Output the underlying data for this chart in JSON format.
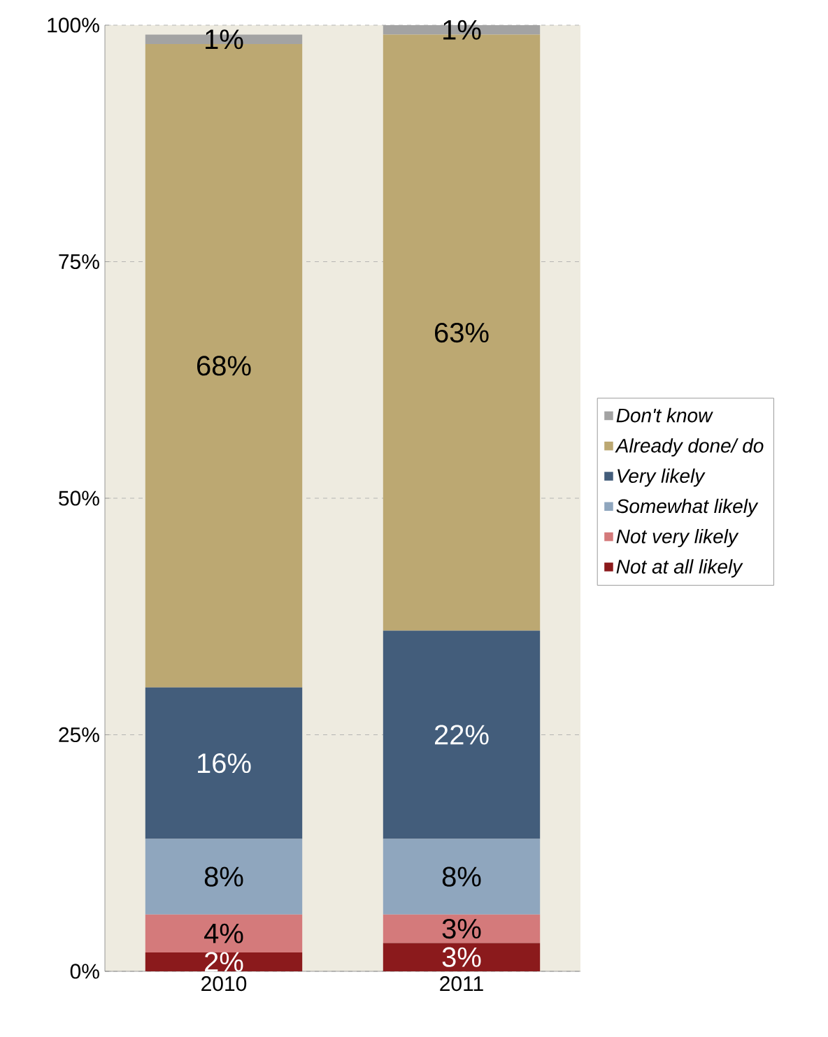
{
  "chart_data": {
    "type": "bar",
    "stacked": true,
    "categories": [
      "2010",
      "2011"
    ],
    "series": [
      {
        "name": "Not at all likely",
        "color": "#8b1a1c",
        "values": [
          2,
          3
        ],
        "value_labels": [
          "2%",
          "3%"
        ]
      },
      {
        "name": "Not very likely",
        "color": "#d47a7b",
        "values": [
          4,
          3
        ],
        "value_labels": [
          "4%",
          "3%"
        ]
      },
      {
        "name": "Somewhat likely",
        "color": "#8fa6be",
        "values": [
          8,
          8
        ],
        "value_labels": [
          "8%",
          "8%"
        ]
      },
      {
        "name": "Very likely",
        "color": "#435d7b",
        "values": [
          16,
          22
        ],
        "value_labels": [
          "16%",
          "22%"
        ]
      },
      {
        "name": "Already done/ do",
        "color": "#bca872",
        "values": [
          68,
          63
        ],
        "value_labels": [
          "68%",
          "63%"
        ]
      },
      {
        "name": "Don't know",
        "color": "#a3a3a3",
        "values": [
          1,
          1
        ],
        "value_labels": [
          "1%",
          "1%"
        ]
      }
    ],
    "ylim": [
      0,
      100
    ],
    "yticks": [
      {
        "value": 0,
        "label": "0%"
      },
      {
        "value": 25,
        "label": "25%"
      },
      {
        "value": 50,
        "label": "50%"
      },
      {
        "value": 75,
        "label": "75%"
      },
      {
        "value": 100,
        "label": "100%"
      }
    ],
    "grid": "y",
    "legend": "right"
  }
}
